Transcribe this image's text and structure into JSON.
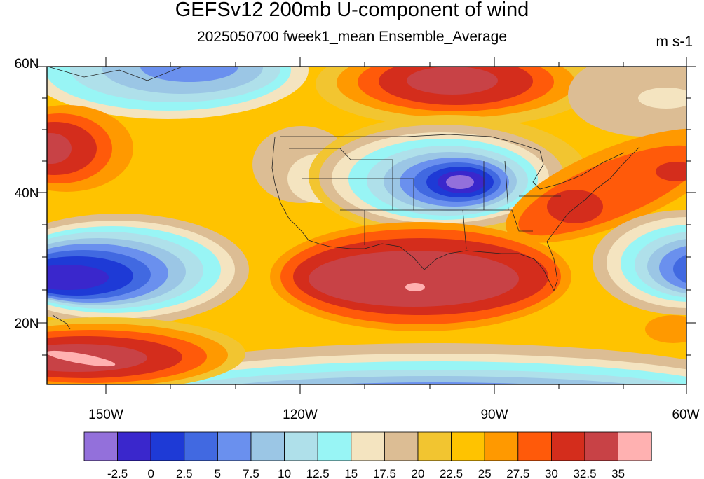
{
  "title": "GEFSv12 200mb U-component of wind",
  "subtitle": "2025050700 fweek1_mean Ensemble_Average",
  "units": "m s-1",
  "lat_labels": [
    {
      "text": "60N",
      "lat": 60
    },
    {
      "text": "40N",
      "lat": 40
    },
    {
      "text": "20N",
      "lat": 20
    }
  ],
  "lon_labels": [
    {
      "text": "150W",
      "lon": -150
    },
    {
      "text": "120W",
      "lon": -120
    },
    {
      "text": "90W",
      "lon": -90
    },
    {
      "text": "60W",
      "lon": -60
    }
  ],
  "colorbar": {
    "colors": [
      "#9370DB",
      "#3A27CC",
      "#1E3AD6",
      "#4169E1",
      "#6A90EE",
      "#9BC6E5",
      "#AFE0EA",
      "#98F5F5",
      "#F4E4C0",
      "#DCBD94",
      "#F2C530",
      "#FFC300",
      "#FF9900",
      "#FF5A0A",
      "#D42D1C",
      "#C84246",
      "#FFB1B1"
    ],
    "labels": [
      "-2.5",
      "0",
      "2.5",
      "5",
      "7.5",
      "10",
      "12.5",
      "15",
      "17.5",
      "20",
      "22.5",
      "25",
      "27.5",
      "30",
      "32.5",
      "35"
    ]
  }
}
